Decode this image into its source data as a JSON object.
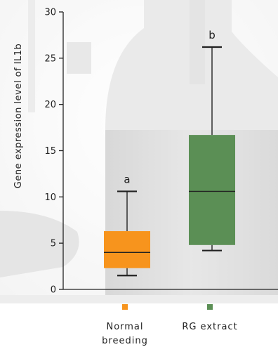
{
  "chart_data": {
    "type": "box",
    "ylabel": "Gene expression level of IL1b",
    "ylim": [
      0,
      30
    ],
    "yticks": [
      0,
      5,
      10,
      15,
      20,
      25,
      30
    ],
    "legend_position": "bottom",
    "series": [
      {
        "name_lines": [
          "Normal",
          "breeding"
        ],
        "color": "#f7941d",
        "min": 1.5,
        "q1": 2.3,
        "median": 4.0,
        "q3": 6.3,
        "max": 10.6,
        "letter": "a"
      },
      {
        "name_lines": [
          "RG extract"
        ],
        "color": "#5b8f55",
        "min": 4.2,
        "q1": 4.8,
        "median": 10.6,
        "q3": 16.7,
        "max": 26.2,
        "letter": "b"
      }
    ]
  },
  "background": {
    "description_icon": "laboratory-glassware-photo"
  }
}
